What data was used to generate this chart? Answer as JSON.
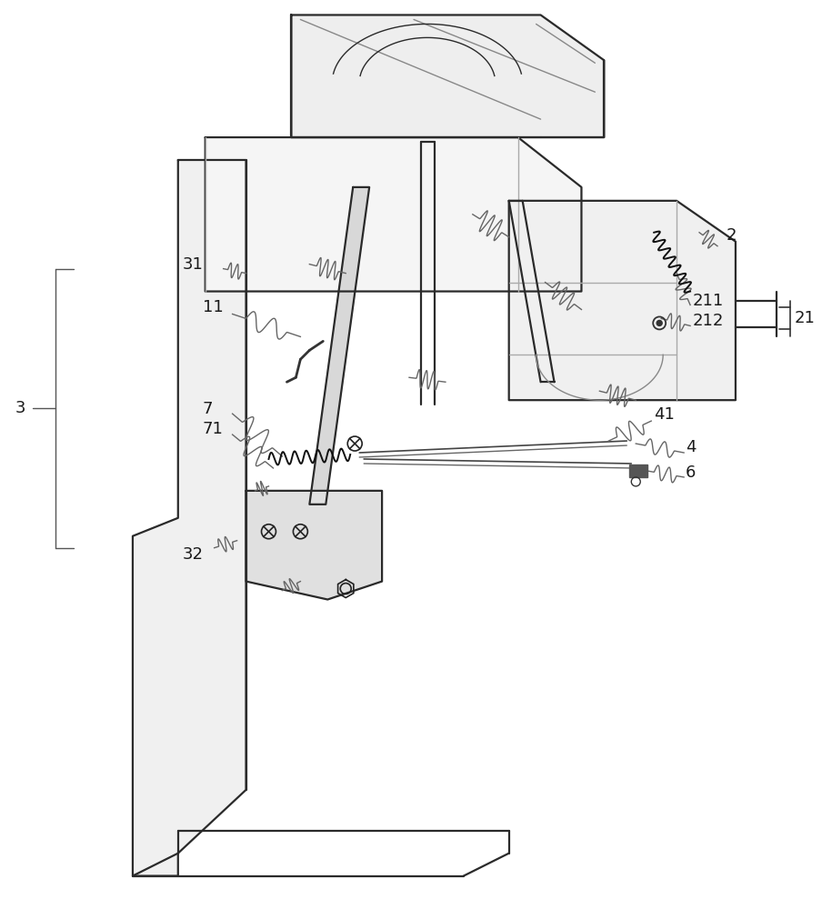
{
  "bg": "#ffffff",
  "lc": "#2a2a2a",
  "lc_thin": "#555555",
  "lc_wave": "#666666",
  "fs_label": 13,
  "lw_main": 1.6,
  "lw_thin": 1.0,
  "lw_wave": 1.0
}
